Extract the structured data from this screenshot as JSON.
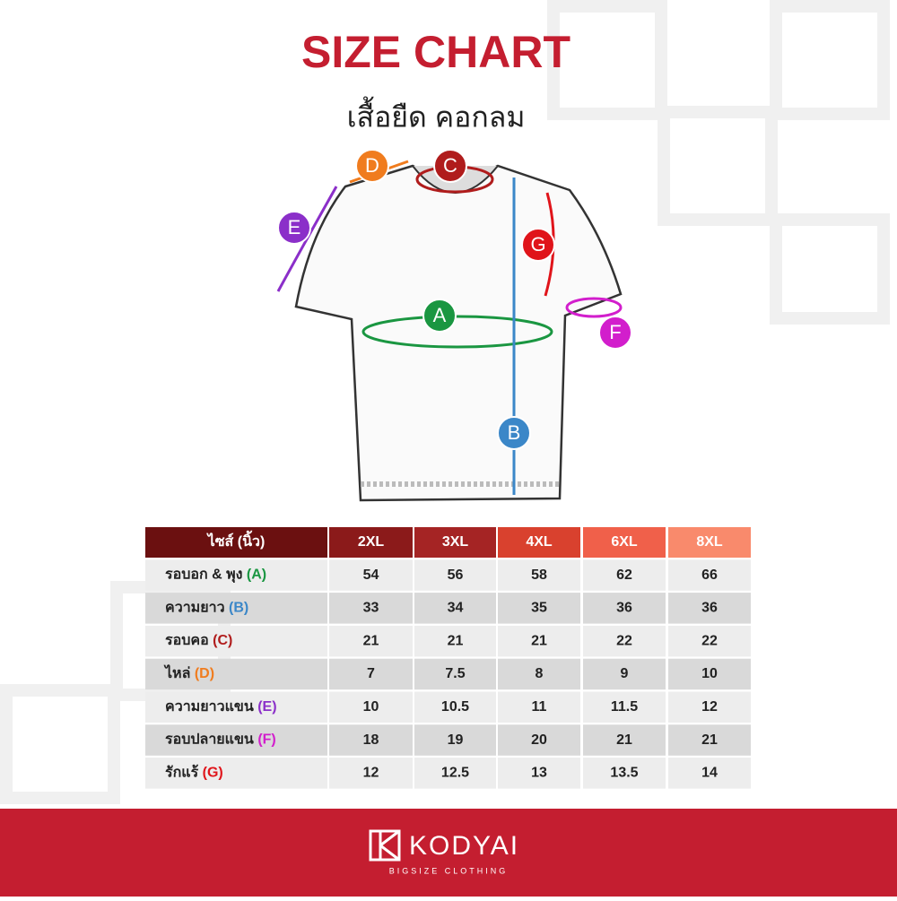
{
  "header": {
    "title": "SIZE CHART",
    "subtitle": "เสื้อยืด คอกลม"
  },
  "diagram": {
    "markers": [
      {
        "letter": "A",
        "color": "#1a9641"
      },
      {
        "letter": "B",
        "color": "#3b87c8"
      },
      {
        "letter": "C",
        "color": "#b01c1c"
      },
      {
        "letter": "D",
        "color": "#f07c1e"
      },
      {
        "letter": "E",
        "color": "#8b2fc9"
      },
      {
        "letter": "F",
        "color": "#d21ecc"
      },
      {
        "letter": "G",
        "color": "#e0141a"
      }
    ]
  },
  "table": {
    "header": {
      "label": "ไซส์ (นิ้ว)",
      "sizes": [
        "2XL",
        "3XL",
        "4XL",
        "6XL",
        "8XL"
      ],
      "colors": [
        "#6b1010",
        "#8b1a1a",
        "#a52424",
        "#d9412e",
        "#f0604a",
        "#f98a6c"
      ]
    },
    "rows": [
      {
        "label": "รอบอก & พุง",
        "code": "(A)",
        "code_color": "#1a9641",
        "values": [
          54,
          56,
          58,
          62,
          66
        ]
      },
      {
        "label": "ความยาว",
        "code": "(B)",
        "code_color": "#3b87c8",
        "values": [
          33,
          34,
          35,
          36,
          36
        ]
      },
      {
        "label": "รอบคอ",
        "code": "(C)",
        "code_color": "#b01c1c",
        "values": [
          21,
          21,
          21,
          22,
          22
        ]
      },
      {
        "label": "ไหล่",
        "code": "(D)",
        "code_color": "#f07c1e",
        "values": [
          7,
          7.5,
          8,
          9,
          10
        ]
      },
      {
        "label": "ความยาวแขน",
        "code": "(E)",
        "code_color": "#8b2fc9",
        "values": [
          10,
          10.5,
          11,
          11.5,
          12
        ]
      },
      {
        "label": "รอบปลายแขน",
        "code": "(F)",
        "code_color": "#d21ecc",
        "values": [
          18,
          19,
          20,
          21,
          21
        ]
      },
      {
        "label": "รักแร้",
        "code": "(G)",
        "code_color": "#e0141a",
        "values": [
          12,
          12.5,
          13,
          13.5,
          14
        ]
      }
    ]
  },
  "brand": {
    "name": "KODYAI",
    "tagline": "BIGSIZE CLOTHING"
  }
}
